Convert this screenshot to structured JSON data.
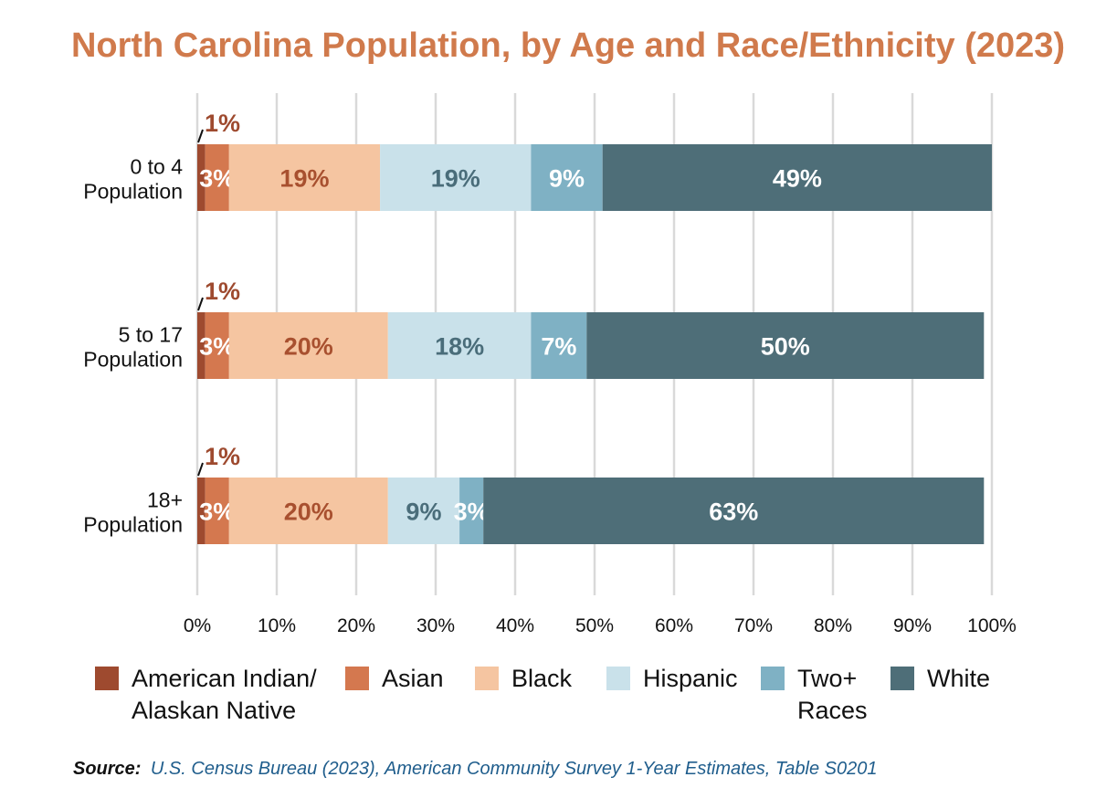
{
  "chart_data": {
    "type": "bar",
    "orientation": "horizontal",
    "stacked": true,
    "title": "North Carolina Population, by Age and Race/Ethnicity (2023)",
    "categories": [
      [
        "0 to 4",
        "Population"
      ],
      [
        "5 to 17",
        "Population"
      ],
      [
        "18+",
        "Population"
      ]
    ],
    "xlim": [
      0,
      100
    ],
    "x_ticks": [
      0,
      10,
      20,
      30,
      40,
      50,
      60,
      70,
      80,
      90,
      100
    ],
    "x_tick_labels": [
      "0%",
      "10%",
      "20%",
      "30%",
      "40%",
      "50%",
      "60%",
      "70%",
      "80%",
      "90%",
      "100%"
    ],
    "grid": true,
    "legend_position": "bottom",
    "series": [
      {
        "name": "American Indian/ Alaskan Native",
        "legend_lines": [
          "American Indian/",
          "Alaskan Native"
        ],
        "color": "#9e4a2f",
        "label_color": "#9e4a2f",
        "values": [
          1,
          1,
          1
        ],
        "labels": [
          "1%",
          "1%",
          "1%"
        ],
        "label_placement": "above"
      },
      {
        "name": "Asian",
        "legend_lines": [
          "Asian"
        ],
        "color": "#d4784f",
        "label_color": "#ffffff",
        "values": [
          3,
          3,
          3
        ],
        "labels": [
          "3%",
          "3%",
          "3%"
        ]
      },
      {
        "name": "Black",
        "legend_lines": [
          "Black"
        ],
        "color": "#f5c5a1",
        "label_color": "#a8502f",
        "values": [
          19,
          20,
          20
        ],
        "labels": [
          "19%",
          "20%",
          "20%"
        ]
      },
      {
        "name": "Hispanic",
        "legend_lines": [
          "Hispanic"
        ],
        "color": "#c9e1ea",
        "label_color": "#4a6d7a",
        "values": [
          19,
          18,
          9
        ],
        "labels": [
          "19%",
          "18%",
          "9%"
        ]
      },
      {
        "name": "Two+ Races",
        "legend_lines": [
          "Two+",
          "Races"
        ],
        "color": "#7fb1c4",
        "label_color": "#ffffff",
        "values": [
          9,
          7,
          3
        ],
        "labels": [
          "9%",
          "7%",
          "3%"
        ]
      },
      {
        "name": "White",
        "legend_lines": [
          "White"
        ],
        "color": "#4e6e78",
        "label_color": "#ffffff",
        "values": [
          49,
          50,
          63
        ],
        "labels": [
          "49%",
          "50%",
          "63%"
        ]
      }
    ]
  },
  "colors": {
    "title": "#d07a4c",
    "source_text": "#1f5d8c"
  },
  "source": {
    "label": "Source:",
    "text": "U.S. Census Bureau (2023), American Community Survey 1-Year Estimates, Table S0201"
  }
}
